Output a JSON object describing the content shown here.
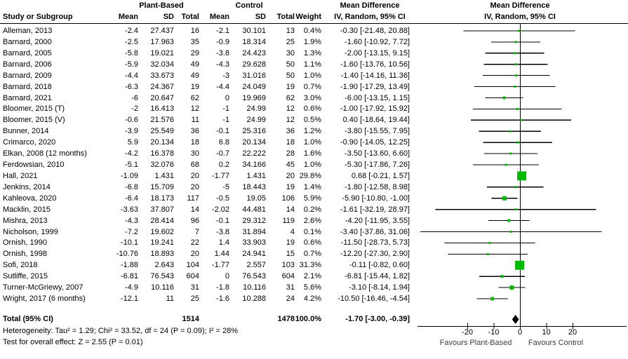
{
  "header": {
    "study_col": "Study or Subgroup",
    "group1": "Plant-Based",
    "group2": "Control",
    "mean1": "Mean",
    "sd1": "SD",
    "total1": "Total",
    "mean2": "Mean",
    "sd2": "SD",
    "total2": "Total",
    "weight": "Weight",
    "md_col_title": "Mean Difference",
    "md_col_sub": "IV, Random, 95% CI",
    "plot_title": "Mean Difference",
    "plot_sub": "IV, Random, 95% CI"
  },
  "rows": [
    {
      "study": "Alleman, 2013",
      "mean1": "-2.4",
      "sd1": "27.437",
      "total1": "16",
      "mean2": "-2.1",
      "sd2": "30.101",
      "total2": "13",
      "weight": "0.4%",
      "ci_text": "-0.30 [-21.48, 20.88]"
    },
    {
      "study": "Barnard, 2000",
      "mean1": "-2.5",
      "sd1": "17.963",
      "total1": "35",
      "mean2": "-0.9",
      "sd2": "18.314",
      "total2": "25",
      "weight": "1.9%",
      "ci_text": "-1.60 [-10.92, 7.72]"
    },
    {
      "study": "Barnard, 2005",
      "mean1": "-5.8",
      "sd1": "19.021",
      "total1": "29",
      "mean2": "-3.8",
      "sd2": "24.423",
      "total2": "30",
      "weight": "1.3%",
      "ci_text": "-2.00 [-13.15, 9.15]"
    },
    {
      "study": "Barnard, 2006",
      "mean1": "-5.9",
      "sd1": "32.034",
      "total1": "49",
      "mean2": "-4.3",
      "sd2": "29.628",
      "total2": "50",
      "weight": "1.1%",
      "ci_text": "-1.60 [-13.76, 10.56]"
    },
    {
      "study": "Barnard, 2009",
      "mean1": "-4.4",
      "sd1": "33.673",
      "total1": "49",
      "mean2": "-3",
      "sd2": "31.016",
      "total2": "50",
      "weight": "1.0%",
      "ci_text": "-1.40 [-14.16, 11.36]"
    },
    {
      "study": "Barnard, 2018",
      "mean1": "-6.3",
      "sd1": "24.367",
      "total1": "19",
      "mean2": "-4.4",
      "sd2": "24.049",
      "total2": "19",
      "weight": "0.7%",
      "ci_text": "-1.90 [-17.29, 13.49]"
    },
    {
      "study": "Barnard, 2021",
      "mean1": "-6",
      "sd1": "20.647",
      "total1": "62",
      "mean2": "0",
      "sd2": "19.969",
      "total2": "62",
      "weight": "3.0%",
      "ci_text": "-6.00 [-13.15, 1.15]"
    },
    {
      "study": "Bloomer, 2015 (T)",
      "mean1": "-2",
      "sd1": "16.413",
      "total1": "12",
      "mean2": "-1",
      "sd2": "24.99",
      "total2": "12",
      "weight": "0.6%",
      "ci_text": "-1.00 [-17.92, 15.92]"
    },
    {
      "study": "Bloomer, 2015 (V)",
      "mean1": "-0.6",
      "sd1": "21.576",
      "total1": "11",
      "mean2": "-1",
      "sd2": "24.99",
      "total2": "12",
      "weight": "0.5%",
      "ci_text": "0.40 [-18.64, 19.44]"
    },
    {
      "study": "Bunner, 2014",
      "mean1": "-3.9",
      "sd1": "25.549",
      "total1": "36",
      "mean2": "-0.1",
      "sd2": "25.316",
      "total2": "36",
      "weight": "1.2%",
      "ci_text": "-3.80 [-15.55, 7.95]"
    },
    {
      "study": "Crimarco, 2020",
      "mean1": "5.9",
      "sd1": "20.134",
      "total1": "18",
      "mean2": "6.8",
      "sd2": "20.134",
      "total2": "18",
      "weight": "1.0%",
      "ci_text": "-0.90 [-14.05, 12.25]"
    },
    {
      "study": "Elkan, 2008 (12 months)",
      "mean1": "-4.2",
      "sd1": "16.378",
      "total1": "30",
      "mean2": "-0.7",
      "sd2": "22.222",
      "total2": "28",
      "weight": "1.6%",
      "ci_text": "-3.50 [-13.60, 6.60]"
    },
    {
      "study": "Ferdowsian, 2010",
      "mean1": "-5.1",
      "sd1": "32.076",
      "total1": "68",
      "mean2": "0.2",
      "sd2": "34.166",
      "total2": "45",
      "weight": "1.0%",
      "ci_text": "-5.30 [-17.86, 7.26]"
    },
    {
      "study": "Hall, 2021",
      "mean1": "-1.09",
      "sd1": "1.431",
      "total1": "20",
      "mean2": "-1.77",
      "sd2": "1.431",
      "total2": "20",
      "weight": "29.8%",
      "ci_text": "0.68 [-0.21, 1.57]"
    },
    {
      "study": "Jenkins, 2014",
      "mean1": "-6.8",
      "sd1": "15.709",
      "total1": "20",
      "mean2": "-5",
      "sd2": "18.443",
      "total2": "19",
      "weight": "1.4%",
      "ci_text": "-1.80 [-12.58, 8.98]"
    },
    {
      "study": "Kahleova, 2020",
      "mean1": "-6.4",
      "sd1": "18.173",
      "total1": "117",
      "mean2": "-0.5",
      "sd2": "19.05",
      "total2": "106",
      "weight": "5.9%",
      "ci_text": "-5.90 [-10.80, -1.00]"
    },
    {
      "study": "Macklin, 2015",
      "mean1": "-3.63",
      "sd1": "37.807",
      "total1": "14",
      "mean2": "-2.02",
      "sd2": "44.481",
      "total2": "14",
      "weight": "0.2%",
      "ci_text": "-1.61 [-32.19, 28.97]"
    },
    {
      "study": "Mishra, 2013",
      "mean1": "-4.3",
      "sd1": "28.414",
      "total1": "96",
      "mean2": "-0.1",
      "sd2": "29.312",
      "total2": "119",
      "weight": "2.6%",
      "ci_text": "-4.20 [-11.95, 3.55]"
    },
    {
      "study": "Nicholson, 1999",
      "mean1": "-7.2",
      "sd1": "19.602",
      "total1": "7",
      "mean2": "-3.8",
      "sd2": "31.894",
      "total2": "4",
      "weight": "0.1%",
      "ci_text": "-3.40 [-37.86, 31.06]"
    },
    {
      "study": "Ornish, 1990",
      "mean1": "-10.1",
      "sd1": "19.241",
      "total1": "22",
      "mean2": "1.4",
      "sd2": "33.903",
      "total2": "19",
      "weight": "0.6%",
      "ci_text": "-11.50 [-28.73, 5.73]"
    },
    {
      "study": "Ornish, 1998",
      "mean1": "-10.76",
      "sd1": "18.893",
      "total1": "20",
      "mean2": "1.44",
      "sd2": "24.941",
      "total2": "15",
      "weight": "0.7%",
      "ci_text": "-12.20 [-27.30, 2.90]"
    },
    {
      "study": "Sofi, 2018",
      "mean1": "-1.88",
      "sd1": "2.643",
      "total1": "104",
      "mean2": "-1.77",
      "sd2": "2.557",
      "total2": "103",
      "weight": "31.3%",
      "ci_text": "-0.11 [-0.82, 0.60]"
    },
    {
      "study": "Sutliffe, 2015",
      "mean1": "-6.81",
      "sd1": "76.543",
      "total1": "604",
      "mean2": "0",
      "sd2": "76.543",
      "total2": "604",
      "weight": "2.1%",
      "ci_text": "-6.81 [-15.44, 1.82]"
    },
    {
      "study": "Turner-McGriewy, 2007",
      "mean1": "-4.9",
      "sd1": "10.116",
      "total1": "31",
      "mean2": "-1.8",
      "sd2": "10.116",
      "total2": "31",
      "weight": "5.6%",
      "ci_text": "-3.10 [-8.14, 1.94]"
    },
    {
      "study": "Wright, 2017 (6 months)",
      "mean1": "-12.1",
      "sd1": "11",
      "total1": "25",
      "mean2": "-1.6",
      "sd2": "10.288",
      "total2": "24",
      "weight": "4.2%",
      "ci_text": "-10.50 [-16.46, -4.54]"
    }
  ],
  "total": {
    "label": "Total (95% CI)",
    "total1": "1514",
    "total2": "1478",
    "weight": "100.0%",
    "ci_text": "-1.70 [-3.00, -0.39]"
  },
  "footer": {
    "heterogeneity": "Heterogeneity: Tau² = 1.29; Chi² = 33.52, df = 24 (P = 0.09); I² = 28%",
    "overall_effect": "Test for overall effect: Z = 2.55 (P = 0.01)"
  },
  "axis": {
    "ticks": [
      "-20",
      "-10",
      "0",
      "10",
      "20"
    ],
    "favours_left": "Favours Plant-Based",
    "favours_right": "Favours Control"
  },
  "colors": {
    "marker_green": "#00bb00",
    "diamond_black": "#000000",
    "line_black": "#000000"
  },
  "chart_data": {
    "type": "forest",
    "title": "Mean Difference",
    "method_label": "IV, Random, 95% CI",
    "x_axis": {
      "ticks": [
        -20,
        -10,
        0,
        10,
        20
      ],
      "range": [
        -38.9,
        40.5
      ],
      "zero_line": 0
    },
    "favours": {
      "left": "Favours Plant-Based",
      "right": "Favours Control"
    },
    "studies": [
      {
        "name": "Alleman, 2013",
        "md": -0.3,
        "lo": -21.48,
        "hi": 20.88,
        "weight": 0.4
      },
      {
        "name": "Barnard, 2000",
        "md": -1.6,
        "lo": -10.92,
        "hi": 7.72,
        "weight": 1.9
      },
      {
        "name": "Barnard, 2005",
        "md": -2.0,
        "lo": -13.15,
        "hi": 9.15,
        "weight": 1.3
      },
      {
        "name": "Barnard, 2006",
        "md": -1.6,
        "lo": -13.76,
        "hi": 10.56,
        "weight": 1.1
      },
      {
        "name": "Barnard, 2009",
        "md": -1.4,
        "lo": -14.16,
        "hi": 11.36,
        "weight": 1.0
      },
      {
        "name": "Barnard, 2018",
        "md": -1.9,
        "lo": -17.29,
        "hi": 13.49,
        "weight": 0.7
      },
      {
        "name": "Barnard, 2021",
        "md": -6.0,
        "lo": -13.15,
        "hi": 1.15,
        "weight": 3.0
      },
      {
        "name": "Bloomer, 2015 (T)",
        "md": -1.0,
        "lo": -17.92,
        "hi": 15.92,
        "weight": 0.6
      },
      {
        "name": "Bloomer, 2015 (V)",
        "md": 0.4,
        "lo": -18.64,
        "hi": 19.44,
        "weight": 0.5
      },
      {
        "name": "Bunner, 2014",
        "md": -3.8,
        "lo": -15.55,
        "hi": 7.95,
        "weight": 1.2
      },
      {
        "name": "Crimarco, 2020",
        "md": -0.9,
        "lo": -14.05,
        "hi": 12.25,
        "weight": 1.0
      },
      {
        "name": "Elkan, 2008 (12 months)",
        "md": -3.5,
        "lo": -13.6,
        "hi": 6.6,
        "weight": 1.6
      },
      {
        "name": "Ferdowsian, 2010",
        "md": -5.3,
        "lo": -17.86,
        "hi": 7.26,
        "weight": 1.0
      },
      {
        "name": "Hall, 2021",
        "md": 0.68,
        "lo": -0.21,
        "hi": 1.57,
        "weight": 29.8
      },
      {
        "name": "Jenkins, 2014",
        "md": -1.8,
        "lo": -12.58,
        "hi": 8.98,
        "weight": 1.4
      },
      {
        "name": "Kahleova, 2020",
        "md": -5.9,
        "lo": -10.8,
        "hi": -1.0,
        "weight": 5.9
      },
      {
        "name": "Macklin, 2015",
        "md": -1.61,
        "lo": -32.19,
        "hi": 28.97,
        "weight": 0.2
      },
      {
        "name": "Mishra, 2013",
        "md": -4.2,
        "lo": -11.95,
        "hi": 3.55,
        "weight": 2.6
      },
      {
        "name": "Nicholson, 1999",
        "md": -3.4,
        "lo": -37.86,
        "hi": 31.06,
        "weight": 0.1
      },
      {
        "name": "Ornish, 1990",
        "md": -11.5,
        "lo": -28.73,
        "hi": 5.73,
        "weight": 0.6
      },
      {
        "name": "Ornish, 1998",
        "md": -12.2,
        "lo": -27.3,
        "hi": 2.9,
        "weight": 0.7
      },
      {
        "name": "Sofi, 2018",
        "md": -0.11,
        "lo": -0.82,
        "hi": 0.6,
        "weight": 31.3
      },
      {
        "name": "Sutliffe, 2015",
        "md": -6.81,
        "lo": -15.44,
        "hi": 1.82,
        "weight": 2.1
      },
      {
        "name": "Turner-McGriewy, 2007",
        "md": -3.1,
        "lo": -8.14,
        "hi": 1.94,
        "weight": 5.6
      },
      {
        "name": "Wright, 2017 (6 months)",
        "md": -10.5,
        "lo": -16.46,
        "hi": -4.54,
        "weight": 4.2
      }
    ],
    "total": {
      "name": "Total (95% CI)",
      "md": -1.7,
      "lo": -3.0,
      "hi": -0.39,
      "weight": 100.0,
      "n_treatment": 1514,
      "n_control": 1478
    },
    "heterogeneity": {
      "tau2": 1.29,
      "chi2": 33.52,
      "df": 24,
      "p": 0.09,
      "i2_pct": 28
    },
    "overall_effect": {
      "z": 2.55,
      "p": 0.01
    }
  }
}
